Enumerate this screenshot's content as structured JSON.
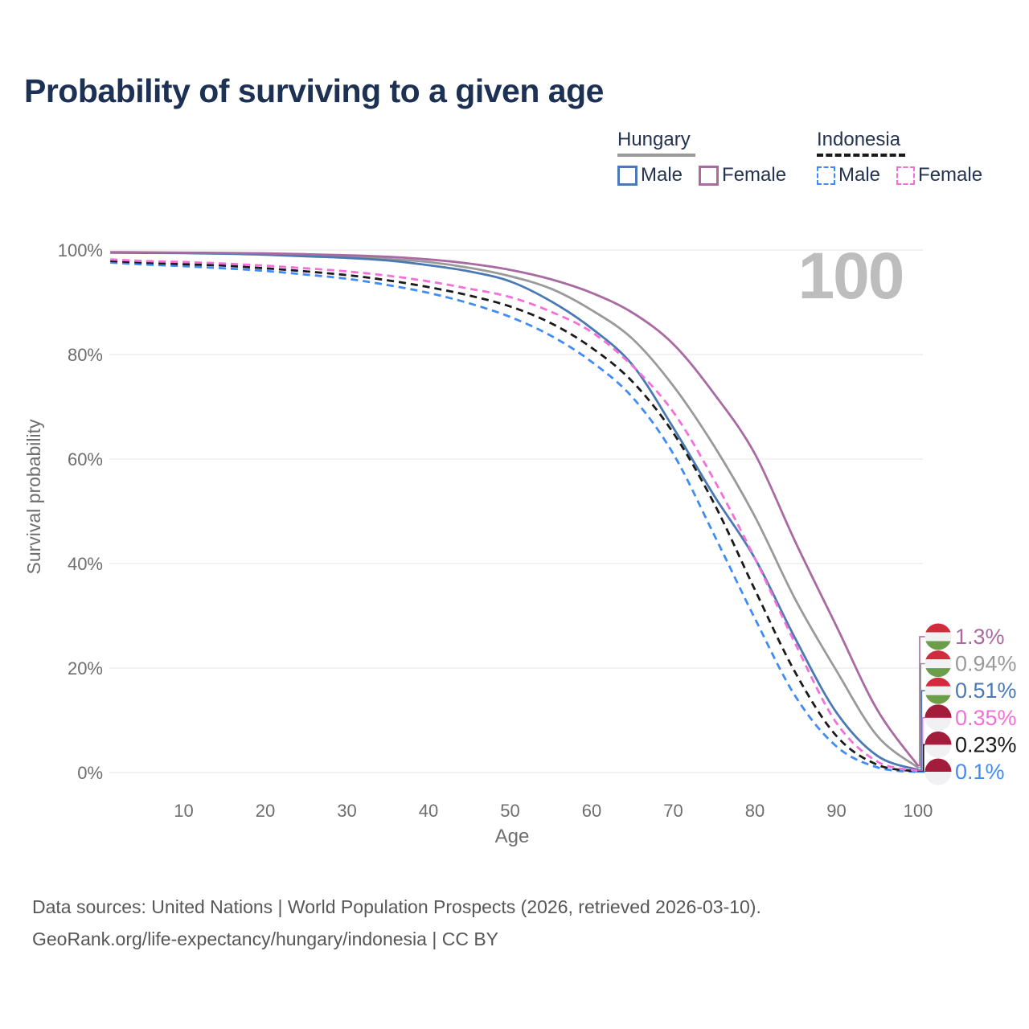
{
  "title": "Probability of surviving to a given age",
  "watermark": "100",
  "legend": {
    "groups": [
      {
        "label": "Hungary",
        "style": "solid",
        "items": [
          {
            "label": "Male",
            "color": "#4b79b3"
          },
          {
            "label": "Female",
            "color": "#a96aa1"
          }
        ]
      },
      {
        "label": "Indonesia",
        "style": "dashed",
        "items": [
          {
            "label": "Male",
            "color": "#408cf5"
          },
          {
            "label": "Female",
            "color": "#f56fd9"
          }
        ]
      }
    ]
  },
  "footer": {
    "line1": "Data sources: United Nations | World Population Prospects (2026, retrieved 2026-03-10).",
    "line2": "GeoRank.org/life-expectancy/hungary/indonesia | CC BY"
  },
  "chart_data": {
    "type": "line",
    "title": "Probability of surviving to a given age",
    "xlabel": "Age",
    "ylabel": "Survival probability",
    "xlim": [
      0,
      107
    ],
    "ylim": [
      0,
      100
    ],
    "grid": "horizontal",
    "x_ticks": [
      10,
      20,
      30,
      40,
      50,
      60,
      70,
      80,
      90,
      100
    ],
    "x_tick_labels": [
      "10",
      "20",
      "30",
      "40",
      "50",
      "60",
      "70",
      "80",
      "90",
      "100"
    ],
    "y_ticks": [
      0,
      20,
      40,
      60,
      80,
      100
    ],
    "y_tick_labels": [
      "0%",
      "20%",
      "40%",
      "60%",
      "80%",
      "100%"
    ],
    "x": [
      1,
      5,
      10,
      15,
      20,
      25,
      30,
      35,
      40,
      45,
      50,
      55,
      60,
      65,
      70,
      75,
      80,
      85,
      90,
      95,
      100
    ],
    "series": [
      {
        "name": "Hungary Female",
        "country": "Hungary",
        "sex": "Female",
        "dash": "solid",
        "color": "#a96aa1",
        "end_label": "1.3%",
        "flag": "hungary",
        "values": [
          99.6,
          99.55,
          99.5,
          99.45,
          99.35,
          99.2,
          99.0,
          98.7,
          98.2,
          97.4,
          96.2,
          94.4,
          91.8,
          88.0,
          82.0,
          72.5,
          61.0,
          44.0,
          28.0,
          12.0,
          1.3
        ]
      },
      {
        "name": "Hungary Both sexes",
        "country": "Hungary",
        "sex": "Both",
        "dash": "solid",
        "color": "#9a9a9a",
        "end_label": "0.94%",
        "flag": "hungary",
        "values": [
          99.55,
          99.5,
          99.45,
          99.35,
          99.2,
          99.0,
          98.7,
          98.3,
          97.7,
          96.6,
          95.0,
          92.6,
          88.5,
          83.0,
          74.0,
          62.5,
          49.0,
          33.0,
          19.5,
          7.0,
          0.94
        ]
      },
      {
        "name": "Hungary Male",
        "country": "Hungary",
        "sex": "Male",
        "dash": "solid",
        "color": "#4b79b3",
        "end_label": "0.51%",
        "flag": "hungary",
        "values": [
          99.5,
          99.45,
          99.4,
          99.3,
          99.1,
          98.8,
          98.5,
          98.0,
          97.1,
          95.9,
          94.0,
          90.2,
          85.0,
          78.0,
          66.0,
          53.0,
          41.0,
          25.5,
          11.5,
          3.2,
          0.51
        ]
      },
      {
        "name": "Indonesia Female",
        "country": "Indonesia",
        "sex": "Female",
        "dash": "dashed",
        "color": "#f56fd9",
        "end_label": "0.35%",
        "flag": "indonesia",
        "values": [
          98.2,
          97.9,
          97.7,
          97.4,
          97.0,
          96.5,
          95.9,
          95.1,
          94.0,
          92.6,
          91.0,
          88.2,
          84.3,
          77.8,
          69.0,
          56.0,
          41.0,
          24.5,
          9.5,
          2.1,
          0.35
        ]
      },
      {
        "name": "Indonesia Both sexes",
        "country": "Indonesia",
        "sex": "Both",
        "dash": "dashed",
        "color": "#1a1a1a",
        "end_label": "0.23%",
        "flag": "indonesia",
        "values": [
          97.9,
          97.6,
          97.3,
          97.0,
          96.5,
          95.9,
          95.2,
          94.2,
          92.9,
          91.3,
          89.2,
          86.0,
          81.3,
          74.8,
          65.0,
          51.5,
          35.0,
          19.0,
          7.0,
          1.5,
          0.23
        ]
      },
      {
        "name": "Indonesia Male",
        "country": "Indonesia",
        "sex": "Male",
        "dash": "dashed",
        "color": "#408cf5",
        "end_label": "0.1%",
        "flag": "indonesia",
        "values": [
          97.6,
          97.25,
          96.9,
          96.5,
          96.0,
          95.3,
          94.5,
          93.3,
          91.8,
          89.8,
          87.2,
          83.6,
          78.6,
          71.8,
          61.0,
          45.5,
          29.5,
          14.5,
          5.0,
          1.0,
          0.1
        ]
      }
    ],
    "flags": {
      "hungary": {
        "bands": [
          "#d22b3e",
          "#f1f1f3",
          "#6b9e49"
        ]
      },
      "indonesia": {
        "bands": [
          "#a31c3c",
          "#f1f1f3"
        ]
      }
    },
    "legend_position": "top-right",
    "colors": {
      "grid": "#e4e4e4",
      "axis_text": "#6e6e6e",
      "watermark": "#bdbdbd"
    }
  }
}
